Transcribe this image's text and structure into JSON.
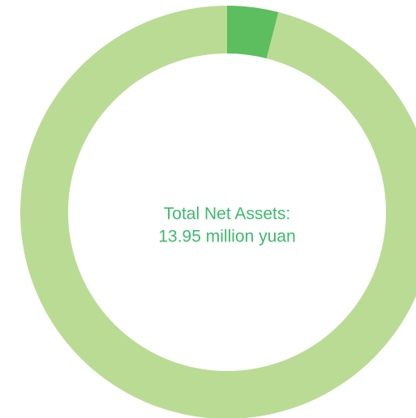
{
  "chart_data": {
    "type": "donut",
    "center_text": [
      "Total Net Assets:",
      "13.95 million yuan"
    ],
    "values": [
      4,
      96
    ],
    "colors": [
      "#5dbe5f",
      "#badb94"
    ],
    "text_color": "#3dba6c"
  }
}
